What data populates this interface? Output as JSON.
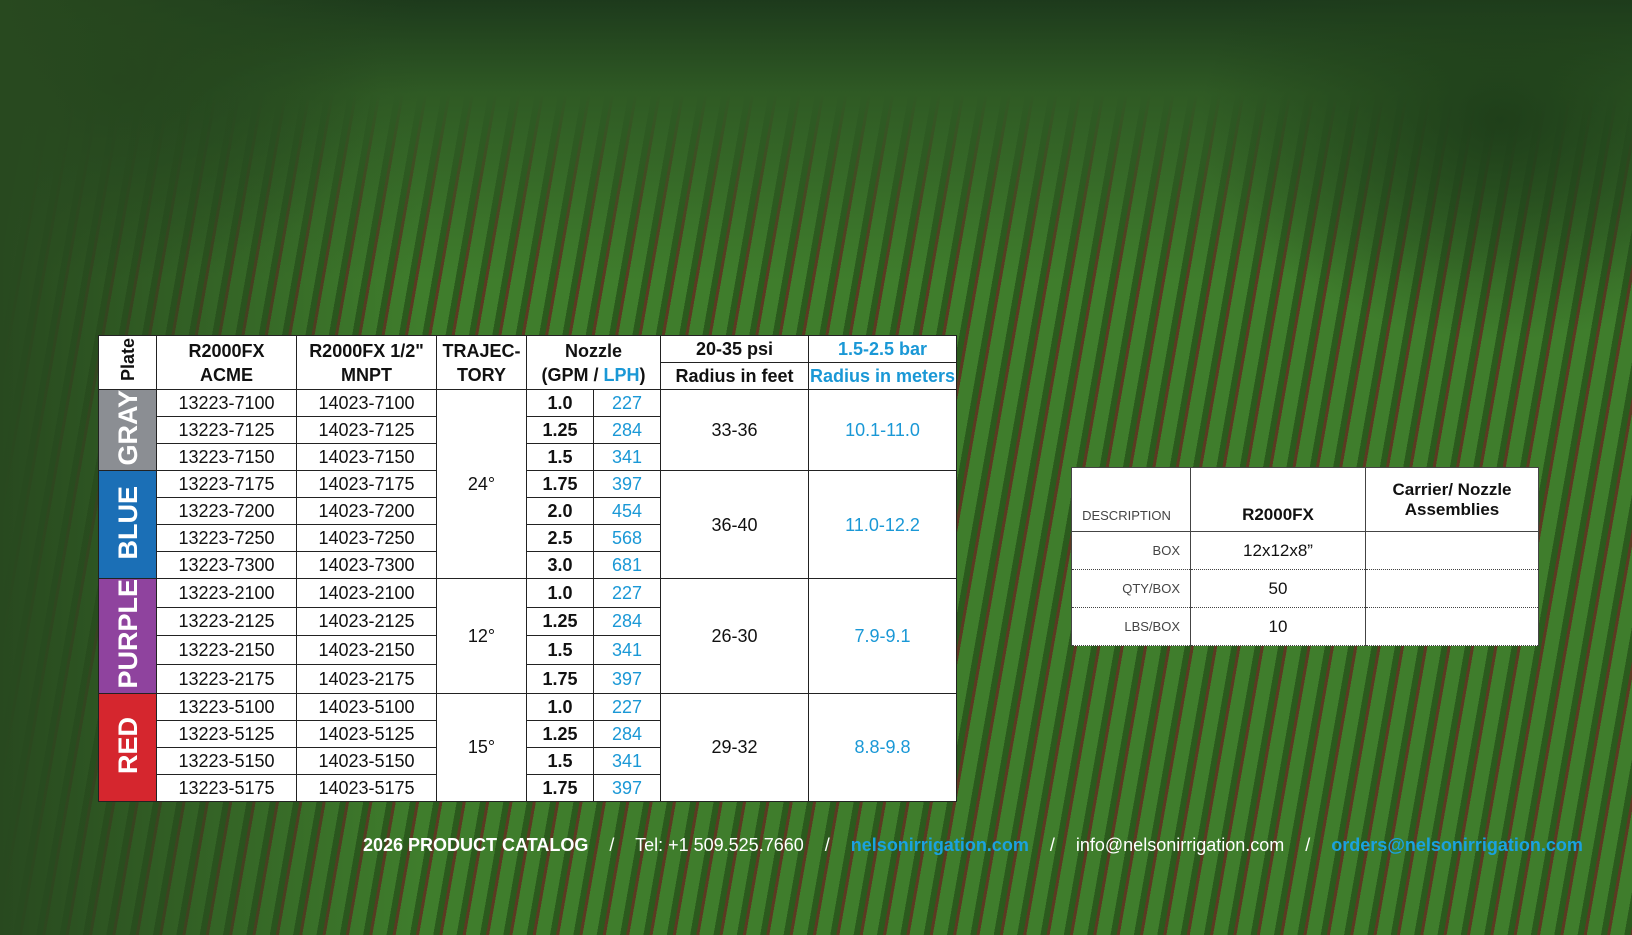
{
  "main_table": {
    "headers": {
      "plate": "Plate",
      "acme": [
        "R2000FX",
        "ACME"
      ],
      "mnpt": [
        "R2000FX 1/2\"",
        "MNPT"
      ],
      "trajectory": [
        "TRAJEC-",
        "TORY"
      ],
      "nozzle": {
        "title": "Nozzle",
        "gpm": "(GPM /",
        "lph": "LPH",
        "close": ")"
      },
      "psi": "20-35 psi",
      "radius_ft": "Radius in feet",
      "bar": "1.5-2.5 bar",
      "radius_m": "Radius in meters"
    },
    "groups": [
      {
        "plate": "GRAY",
        "color": "#8b8e93",
        "trajectory": "24°",
        "radius_ft": "33-36",
        "radius_m": "10.1-11.0",
        "rows": [
          [
            "13223-7100",
            "14023-7100",
            "1.0",
            "227"
          ],
          [
            "13223-7125",
            "14023-7125",
            "1.25",
            "284"
          ],
          [
            "13223-7150",
            "14023-7150",
            "1.5",
            "341"
          ]
        ]
      },
      {
        "plate": "BLUE",
        "color": "#1b6fb6",
        "radius_ft": "36-40",
        "radius_m": "11.0-12.2",
        "rows": [
          [
            "13223-7175",
            "14023-7175",
            "1.75",
            "397"
          ],
          [
            "13223-7200",
            "14023-7200",
            "2.0",
            "454"
          ],
          [
            "13223-7250",
            "14023-7250",
            "2.5",
            "568"
          ],
          [
            "13223-7300",
            "14023-7300",
            "3.0",
            "681"
          ]
        ]
      },
      {
        "plate": "PURPLE",
        "color": "#8f439e",
        "trajectory": "12°",
        "radius_ft": "26-30",
        "radius_m": "7.9-9.1",
        "rows": [
          [
            "13223-2100",
            "14023-2100",
            "1.0",
            "227"
          ],
          [
            "13223-2125",
            "14023-2125",
            "1.25",
            "284"
          ],
          [
            "13223-2150",
            "14023-2150",
            "1.5",
            "341"
          ],
          [
            "13223-2175",
            "14023-2175",
            "1.75",
            "397"
          ]
        ]
      },
      {
        "plate": "RED",
        "color": "#d5262e",
        "trajectory": "15°",
        "radius_ft": "29-32",
        "radius_m": "8.8-9.8",
        "rows": [
          [
            "13223-5100",
            "14023-5100",
            "1.0",
            "227"
          ],
          [
            "13223-5125",
            "14023-5125",
            "1.25",
            "284"
          ],
          [
            "13223-5150",
            "14023-5150",
            "1.5",
            "341"
          ],
          [
            "13223-5175",
            "14023-5175",
            "1.75",
            "397"
          ]
        ]
      }
    ]
  },
  "box_table": {
    "headers": [
      "DESCRIPTION",
      "R2000FX",
      "Carrier/ Nozzle Assemblies"
    ],
    "rows": [
      {
        "label": "BOX",
        "value": "12x12x8”"
      },
      {
        "label": "QTY/BOX",
        "value": "50"
      },
      {
        "label": "LBS/BOX",
        "value": "10"
      }
    ]
  },
  "footer": {
    "catalog": "2026 PRODUCT CATALOG",
    "separator": "/",
    "tel": "Tel: +1 509.525.7660",
    "web": "nelsonirrigation.com",
    "info": "info@nelsonirrigation.com",
    "orders": "orders@nelsonirrigation.com"
  }
}
